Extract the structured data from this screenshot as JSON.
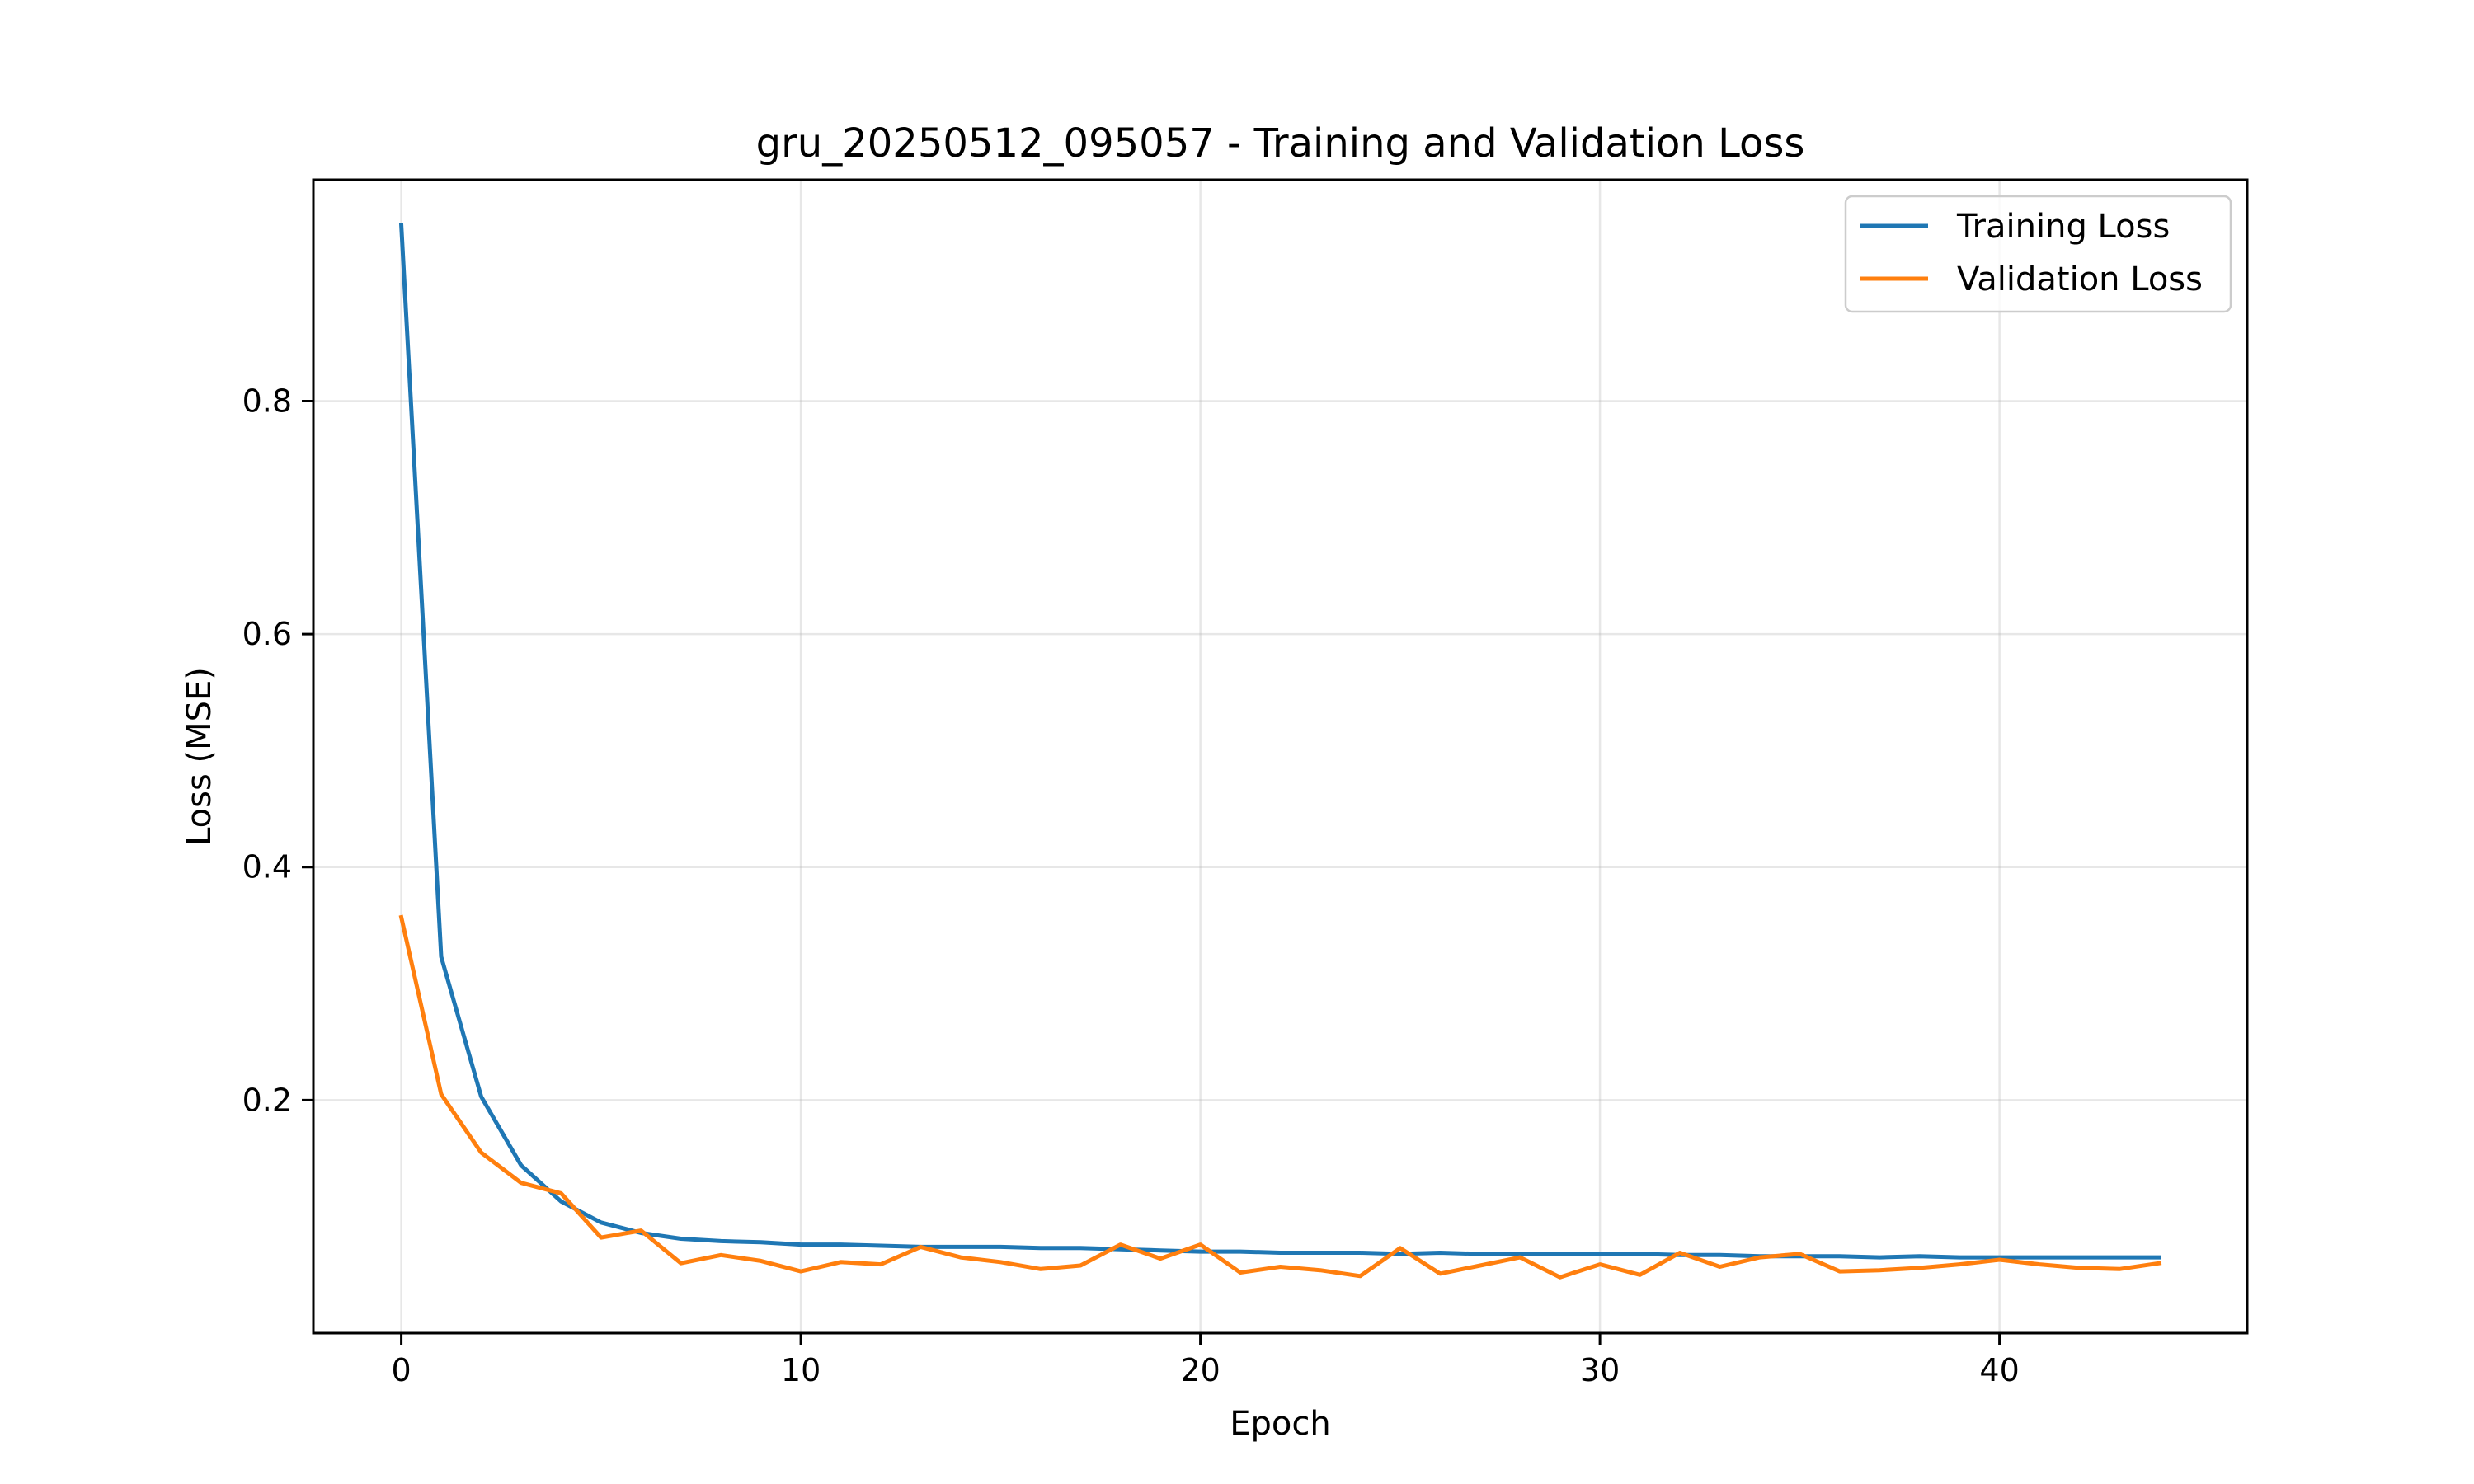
{
  "chart_data": {
    "type": "line",
    "title": "gru_20250512_095057 - Training and Validation Loss",
    "xlabel": "Epoch",
    "ylabel": "Loss (MSE)",
    "xlim": [
      -2.2,
      46.2
    ],
    "ylim": [
      0.0,
      0.99
    ],
    "xticks": [
      0,
      10,
      20,
      30,
      40
    ],
    "yticks": [
      0.2,
      0.4,
      0.6,
      0.8
    ],
    "xtick_labels": [
      "0",
      "10",
      "20",
      "30",
      "40"
    ],
    "ytick_labels": [
      "0.2",
      "0.4",
      "0.6",
      "0.8"
    ],
    "grid": true,
    "legend_position": "top-right",
    "x": [
      0,
      1,
      2,
      3,
      4,
      5,
      6,
      7,
      8,
      9,
      10,
      11,
      12,
      13,
      14,
      15,
      16,
      17,
      18,
      19,
      20,
      21,
      22,
      23,
      24,
      25,
      26,
      27,
      28,
      29,
      30,
      31,
      32,
      33,
      34,
      35,
      36,
      37,
      38,
      39,
      40,
      41,
      42,
      43,
      44
    ],
    "series": [
      {
        "name": "Training Loss",
        "color": "#1f77b4",
        "values": [
          0.951,
          0.323,
          0.203,
          0.144,
          0.113,
          0.095,
          0.086,
          0.081,
          0.079,
          0.078,
          0.076,
          0.076,
          0.075,
          0.074,
          0.074,
          0.074,
          0.073,
          0.073,
          0.072,
          0.071,
          0.07,
          0.07,
          0.069,
          0.069,
          0.069,
          0.068,
          0.069,
          0.068,
          0.068,
          0.068,
          0.068,
          0.068,
          0.067,
          0.067,
          0.066,
          0.066,
          0.066,
          0.065,
          0.066,
          0.065,
          0.065,
          0.065,
          0.065,
          0.065,
          0.065
        ]
      },
      {
        "name": "Validation Loss",
        "color": "#ff7f0e",
        "values": [
          0.357,
          0.205,
          0.155,
          0.129,
          0.12,
          0.082,
          0.088,
          0.06,
          0.067,
          0.062,
          0.053,
          0.061,
          0.059,
          0.074,
          0.065,
          0.061,
          0.055,
          0.058,
          0.076,
          0.064,
          0.076,
          0.052,
          0.057,
          0.054,
          0.049,
          0.073,
          0.051,
          0.058,
          0.065,
          0.048,
          0.059,
          0.05,
          0.069,
          0.057,
          0.065,
          0.068,
          0.053,
          0.054,
          0.056,
          0.059,
          0.063,
          0.059,
          0.056,
          0.055,
          0.06
        ]
      }
    ]
  }
}
